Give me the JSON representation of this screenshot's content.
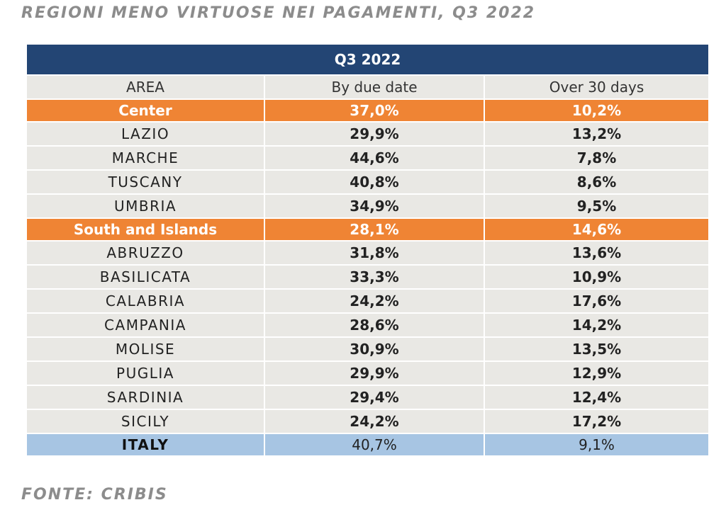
{
  "title": "REGIONI MENO VIRTUOSE NEI PAGAMENTI, Q3 2022",
  "source": "FONTE: CRIBIS",
  "chart_data": {
    "type": "table",
    "header": "Q3 2022",
    "columns": [
      "AREA",
      "By due date",
      "Over 30 days"
    ],
    "rows": [
      {
        "kind": "area",
        "area": "Center",
        "by_due_date": "37,0%",
        "over_30_days": "10,2%"
      },
      {
        "kind": "region",
        "area": "LAZIO",
        "by_due_date": "29,9%",
        "over_30_days": "13,2%"
      },
      {
        "kind": "region",
        "area": "MARCHE",
        "by_due_date": "44,6%",
        "over_30_days": "7,8%"
      },
      {
        "kind": "region",
        "area": "TUSCANY",
        "by_due_date": "40,8%",
        "over_30_days": "8,6%"
      },
      {
        "kind": "region",
        "area": "UMBRIA",
        "by_due_date": "34,9%",
        "over_30_days": "9,5%"
      },
      {
        "kind": "area",
        "area": "South and Islands",
        "by_due_date": "28,1%",
        "over_30_days": "14,6%"
      },
      {
        "kind": "region",
        "area": "ABRUZZO",
        "by_due_date": "31,8%",
        "over_30_days": "13,6%"
      },
      {
        "kind": "region",
        "area": "BASILICATA",
        "by_due_date": "33,3%",
        "over_30_days": "10,9%"
      },
      {
        "kind": "region",
        "area": "CALABRIA",
        "by_due_date": "24,2%",
        "over_30_days": "17,6%"
      },
      {
        "kind": "region",
        "area": "CAMPANIA",
        "by_due_date": "28,6%",
        "over_30_days": "14,2%"
      },
      {
        "kind": "region",
        "area": "MOLISE",
        "by_due_date": "30,9%",
        "over_30_days": "13,5%"
      },
      {
        "kind": "region",
        "area": "PUGLIA",
        "by_due_date": "29,9%",
        "over_30_days": "12,9%"
      },
      {
        "kind": "region",
        "area": "SARDINIA",
        "by_due_date": "29,4%",
        "over_30_days": "12,4%"
      },
      {
        "kind": "region",
        "area": "SICILY",
        "by_due_date": "24,2%",
        "over_30_days": "17,2%"
      },
      {
        "kind": "total",
        "area": "ITALY",
        "by_due_date": "40,7%",
        "over_30_days": "9,1%"
      }
    ],
    "colors": {
      "header_bg": "#234574",
      "area_bg": "#ef8434",
      "region_bg": "#e9e8e4",
      "total_bg": "#a7c5e3"
    }
  }
}
